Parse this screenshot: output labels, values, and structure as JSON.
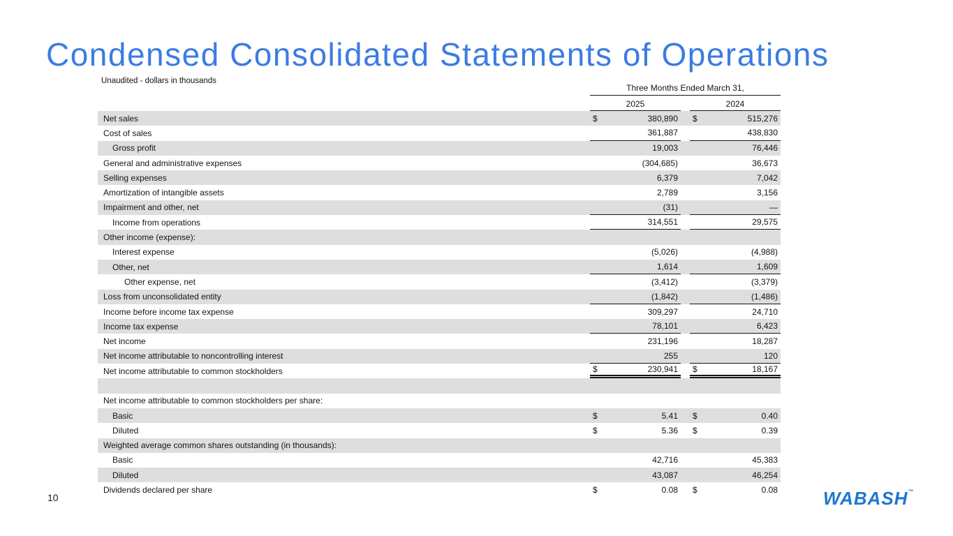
{
  "slide": {
    "title": "Condensed Consolidated Statements of Operations",
    "subtitle": "Unaudited - dollars in thousands",
    "page_number": "10",
    "logo_text": "WABASH",
    "logo_tm": "™"
  },
  "table": {
    "period_header": "Three Months Ended March 31,",
    "col_2025": "2025",
    "col_2024": "2024",
    "rows": [
      {
        "label": "Net sales",
        "indent": 0,
        "shaded": true,
        "rule": "none",
        "d1": "$",
        "v1": "380,890",
        "d2": "$",
        "v2": "515,276"
      },
      {
        "label": "Cost of sales",
        "indent": 0,
        "shaded": false,
        "rule": "single",
        "d1": "",
        "v1": "361,887",
        "d2": "",
        "v2": "438,830"
      },
      {
        "label": "Gross profit",
        "indent": 1,
        "shaded": true,
        "rule": "none",
        "d1": "",
        "v1": "19,003",
        "d2": "",
        "v2": "76,446"
      },
      {
        "label": "General and administrative expenses",
        "indent": 0,
        "shaded": false,
        "rule": "none",
        "d1": "",
        "v1": "(304,685)",
        "d2": "",
        "v2": "36,673"
      },
      {
        "label": "Selling expenses",
        "indent": 0,
        "shaded": true,
        "rule": "none",
        "d1": "",
        "v1": "6,379",
        "d2": "",
        "v2": "7,042"
      },
      {
        "label": "Amortization of intangible assets",
        "indent": 0,
        "shaded": false,
        "rule": "none",
        "d1": "",
        "v1": "2,789",
        "d2": "",
        "v2": "3,156"
      },
      {
        "label": "Impairment and other, net",
        "indent": 0,
        "shaded": true,
        "rule": "single",
        "d1": "",
        "v1": "(31)",
        "d2": "",
        "v2": "—"
      },
      {
        "label": "Income from operations",
        "indent": 1,
        "shaded": false,
        "rule": "single",
        "d1": "",
        "v1": "314,551",
        "d2": "",
        "v2": "29,575"
      },
      {
        "label": "Other income (expense):",
        "indent": 0,
        "shaded": true,
        "rule": "none",
        "d1": "",
        "v1": "",
        "d2": "",
        "v2": ""
      },
      {
        "label": "Interest expense",
        "indent": 1,
        "shaded": false,
        "rule": "none",
        "d1": "",
        "v1": "(5,026)",
        "d2": "",
        "v2": "(4,988)"
      },
      {
        "label": "Other, net",
        "indent": 1,
        "shaded": true,
        "rule": "single",
        "d1": "",
        "v1": "1,614",
        "d2": "",
        "v2": "1,609"
      },
      {
        "label": "Other expense, net",
        "indent": 2,
        "shaded": false,
        "rule": "none",
        "d1": "",
        "v1": "(3,412)",
        "d2": "",
        "v2": "(3,379)"
      },
      {
        "label": "Loss from unconsolidated entity",
        "indent": 0,
        "shaded": true,
        "rule": "single",
        "d1": "",
        "v1": "(1,842)",
        "d2": "",
        "v2": "(1,486)"
      },
      {
        "label": "Income before income tax expense",
        "indent": 0,
        "shaded": false,
        "rule": "none",
        "d1": "",
        "v1": "309,297",
        "d2": "",
        "v2": "24,710"
      },
      {
        "label": "Income tax expense",
        "indent": 0,
        "shaded": true,
        "rule": "single",
        "d1": "",
        "v1": "78,101",
        "d2": "",
        "v2": "6,423"
      },
      {
        "label": "Net income",
        "indent": 0,
        "shaded": false,
        "rule": "none",
        "d1": "",
        "v1": "231,196",
        "d2": "",
        "v2": "18,287"
      },
      {
        "label": "Net income attributable to noncontrolling interest",
        "indent": 0,
        "shaded": true,
        "rule": "single",
        "d1": "",
        "v1": "255",
        "d2": "",
        "v2": "120"
      },
      {
        "label": "Net income attributable to common stockholders",
        "indent": 0,
        "shaded": false,
        "rule": "double",
        "d1": "$",
        "v1": "230,941",
        "d2": "$",
        "v2": "18,167"
      },
      {
        "label": "",
        "indent": 0,
        "shaded": true,
        "rule": "none",
        "d1": "",
        "v1": "",
        "d2": "",
        "v2": ""
      },
      {
        "label": "Net income attributable to common stockholders per share:",
        "indent": 0,
        "shaded": false,
        "rule": "none",
        "d1": "",
        "v1": "",
        "d2": "",
        "v2": ""
      },
      {
        "label": "Basic",
        "indent": 1,
        "shaded": true,
        "rule": "none",
        "d1": "$",
        "v1": "5.41",
        "d2": "$",
        "v2": "0.40"
      },
      {
        "label": "Diluted",
        "indent": 1,
        "shaded": false,
        "rule": "none",
        "d1": "$",
        "v1": "5.36",
        "d2": "$",
        "v2": "0.39"
      },
      {
        "label": "Weighted average common shares outstanding (in thousands):",
        "indent": 0,
        "shaded": true,
        "rule": "none",
        "d1": "",
        "v1": "",
        "d2": "",
        "v2": ""
      },
      {
        "label": "Basic",
        "indent": 1,
        "shaded": false,
        "rule": "none",
        "d1": "",
        "v1": "42,716",
        "d2": "",
        "v2": "45,383"
      },
      {
        "label": "Diluted",
        "indent": 1,
        "shaded": true,
        "rule": "none",
        "d1": "",
        "v1": "43,087",
        "d2": "",
        "v2": "46,254"
      },
      {
        "label": "Dividends declared per share",
        "indent": 0,
        "shaded": false,
        "rule": "none",
        "d1": "$",
        "v1": "0.08",
        "d2": "$",
        "v2": "0.08"
      }
    ]
  },
  "colors": {
    "title_blue": "#3b7ce3",
    "logo_blue": "#1e76cf",
    "row_shade": "#dedede",
    "rule_color": "#141414"
  }
}
